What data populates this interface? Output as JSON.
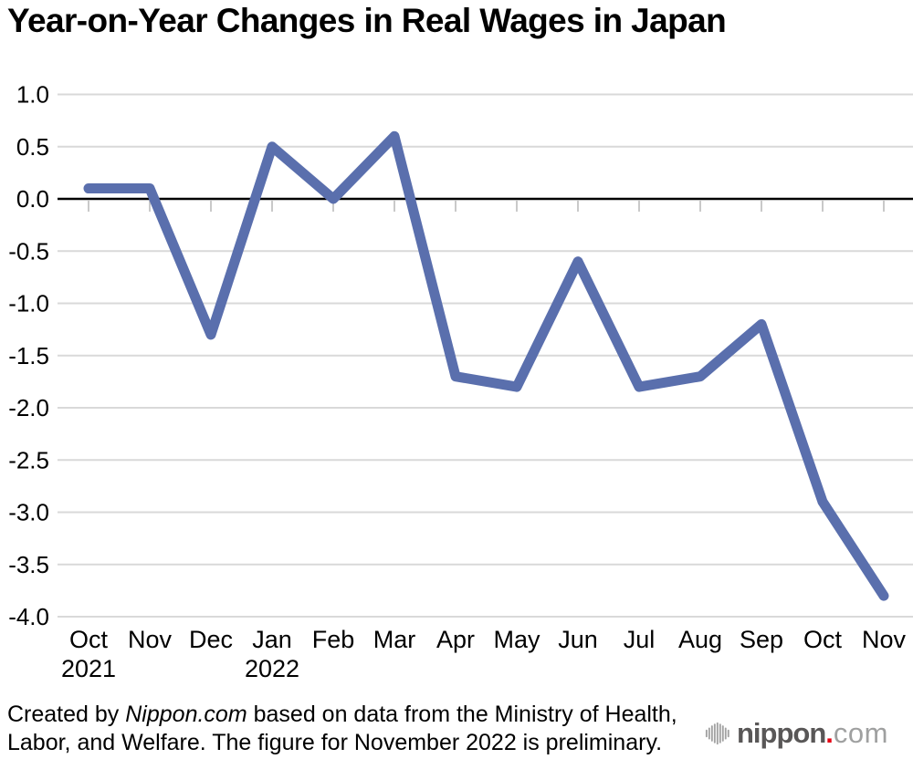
{
  "title": "Year-on-Year Changes in Real Wages in Japan",
  "chart_data": {
    "type": "line",
    "categories": [
      "Oct",
      "Nov",
      "Dec",
      "Jan",
      "Feb",
      "Mar",
      "Apr",
      "May",
      "Jun",
      "Jul",
      "Aug",
      "Sep",
      "Oct",
      "Nov"
    ],
    "year_labels": [
      {
        "index": 0,
        "label": "2021"
      },
      {
        "index": 3,
        "label": "2022"
      }
    ],
    "values": [
      0.1,
      0.1,
      -1.3,
      0.5,
      0.0,
      0.6,
      -1.7,
      -1.8,
      -0.6,
      -1.8,
      -1.7,
      -1.2,
      -2.9,
      -3.8
    ],
    "ylim": [
      -4.0,
      1.0
    ],
    "ytick_values": [
      1.0,
      0.5,
      0.0,
      -0.5,
      -1.0,
      -1.5,
      -2.0,
      -2.5,
      -3.0,
      -3.5,
      -4.0
    ],
    "ytick_labels": [
      "1.0",
      "0.5",
      "0.0",
      "-0.5",
      "-1.0",
      "-1.5",
      "-2.0",
      "-2.5",
      "-3.0",
      "-3.5",
      "-4.0"
    ],
    "title": "Year-on-Year Changes in Real Wages in Japan",
    "xlabel": "",
    "ylabel": "",
    "grid": true,
    "legend": "none",
    "line_color": "#5a6fad",
    "grid_color": "#d9d9d9",
    "tick_color": "#c9c9c9",
    "zero_line_color": "#000000"
  },
  "footer": {
    "note_prefix": "Created by ",
    "note_source": "Nippon.com",
    "note_suffix": " based on data from the Ministry of Health, Labor, and Welfare. The figure for November 2022 is preliminary."
  },
  "logo": {
    "name": "nippon",
    "dot": ".",
    "tld": "com",
    "name_color": "#595757",
    "dot_color": "#e60012",
    "tld_color": "#9fa0a0",
    "mark_color": "#a2a2a2"
  }
}
